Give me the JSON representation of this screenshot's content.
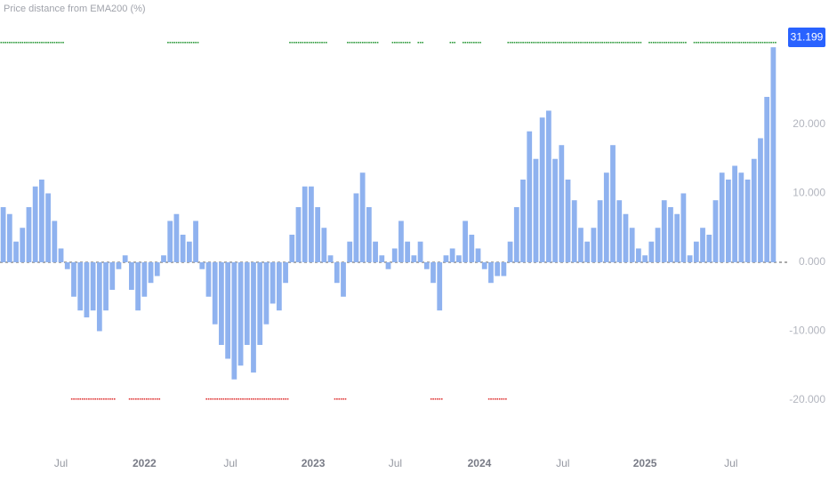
{
  "chart_data": {
    "type": "bar",
    "title": "Price distance from EMA200 (%)",
    "color": "#8fb2ef",
    "values": [
      8,
      7,
      3,
      5,
      8,
      11,
      12,
      10,
      6,
      2,
      -1,
      -5,
      -7,
      -8,
      -7,
      -10,
      -7,
      -4,
      -1,
      1,
      -4,
      -7,
      -5,
      -3,
      -2,
      1,
      6,
      7,
      4,
      3,
      6,
      -1,
      -5,
      -9,
      -12,
      -14,
      -17,
      -15,
      -12,
      -16,
      -12,
      -9,
      -6,
      -7,
      -3,
      4,
      8,
      11,
      11,
      8,
      5,
      1,
      -3,
      -5,
      3,
      10,
      13,
      8,
      3,
      1,
      -1,
      2,
      6,
      3,
      1,
      3,
      -1,
      -3,
      -7,
      1,
      2,
      1,
      6,
      4,
      2,
      -1,
      -3,
      -2,
      -2,
      3,
      8,
      12,
      19,
      15,
      21,
      22,
      15,
      17,
      12,
      9,
      5,
      3,
      5,
      9,
      13,
      17,
      9,
      7,
      5,
      2,
      1,
      3,
      5,
      9,
      8,
      7,
      10,
      1,
      3,
      5,
      4,
      9,
      13,
      12,
      14,
      13,
      12,
      15,
      18,
      24,
      31.199
    ],
    "ylim": [
      -27.1,
      38.06
    ],
    "yticks": [
      {
        "value": 20,
        "label": "20.000"
      },
      {
        "value": 10,
        "label": "10.000"
      },
      {
        "value": 0,
        "label": "0.000"
      },
      {
        "value": -10,
        "label": "-10.000"
      },
      {
        "value": -20,
        "label": "-20.000"
      }
    ],
    "xlim": [
      0,
      121
    ],
    "xticks": [
      {
        "value": 9,
        "label": "Jul"
      },
      {
        "value": 22,
        "label": "2022"
      },
      {
        "value": 35.4,
        "label": "Jul"
      },
      {
        "value": 48.3,
        "label": "2023"
      },
      {
        "value": 61.1,
        "label": "Jul"
      },
      {
        "value": 74.2,
        "label": "2024"
      },
      {
        "value": 87.2,
        "label": "Jul"
      },
      {
        "value": 100,
        "label": "2025"
      },
      {
        "value": 113.4,
        "label": "Jul"
      }
    ],
    "signal_colors": {
      "up": "#2e9a3c",
      "down": "#e03b3b"
    },
    "badge_color": "#2962ff"
  }
}
